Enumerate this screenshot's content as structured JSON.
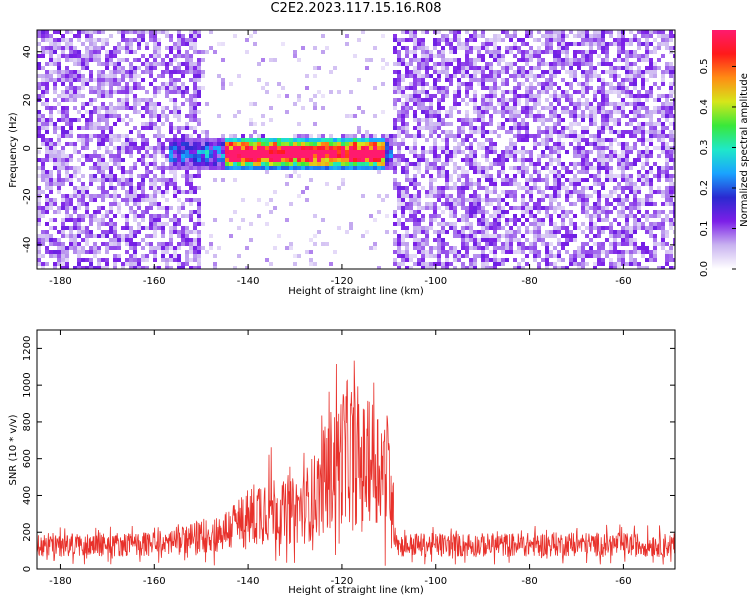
{
  "title": "C2E2.2023.117.15.16.R08",
  "colors": {
    "snr_line": "#e8312b",
    "axes": "#000000",
    "colormap": [
      "#ffffff",
      "#c9b3f0",
      "#7c1fe8",
      "#2a2ad0",
      "#1aa3ff",
      "#1fe8c9",
      "#39e83a",
      "#d6e61a",
      "#ff8c14",
      "#ff1a1a",
      "#ff1a6e"
    ]
  },
  "chart_data": [
    {
      "type": "heatmap",
      "title": "",
      "xlabel": "Height of straight line (km)",
      "ylabel": "Frequency (Hz)",
      "xlim": [
        -185,
        -49
      ],
      "ylim": [
        -50,
        49
      ],
      "xticks": [
        -180,
        -160,
        -140,
        -120,
        -100,
        -80,
        -60
      ],
      "yticks": [
        -40,
        -20,
        0,
        20,
        40
      ],
      "xtick_labels": [
        "-180",
        "-160",
        "-140",
        "-120",
        "-100",
        "-80",
        "-60"
      ],
      "ytick_labels": [
        "-40",
        "-20",
        "0",
        "20",
        "40"
      ],
      "signal_band": {
        "x_range": [
          -157,
          -109
        ],
        "freq_center": -2,
        "peak_x_range": [
          -145,
          -111
        ]
      },
      "quiet_region": {
        "x_range": [
          -150,
          -109
        ],
        "freq_abs_min": 6
      },
      "colorbar": {
        "label": "Normalized spectral amplitude",
        "range": [
          0,
          0.59
        ],
        "ticks": [
          0.0,
          0.1,
          0.2,
          0.3,
          0.4,
          0.5
        ],
        "tick_labels": [
          "0.0",
          "0.1",
          "0.2",
          "0.3",
          "0.4",
          "0.5"
        ]
      }
    },
    {
      "type": "line",
      "title": "",
      "xlabel": "Height of straight line (km)",
      "ylabel": "SNR (10 * v/v)",
      "xlim": [
        -185,
        -49
      ],
      "ylim": [
        0,
        1300
      ],
      "xticks": [
        -180,
        -160,
        -140,
        -120,
        -100,
        -80,
        -60
      ],
      "yticks": [
        0,
        200,
        400,
        600,
        800,
        1000,
        1200
      ],
      "xtick_labels": [
        "-180",
        "-160",
        "-140",
        "-120",
        "-100",
        "-80",
        "-60"
      ],
      "ytick_labels": [
        "0",
        "200",
        "400",
        "600",
        "800",
        "1000",
        "1200"
      ],
      "envelope": {
        "x": [
          -185,
          -160,
          -152,
          -146,
          -140,
          -136,
          -132,
          -128,
          -125,
          -122,
          -119,
          -116,
          -113,
          -110,
          -109,
          -108,
          -90,
          -70,
          -49
        ],
        "mean": [
          130,
          135,
          165,
          195,
          270,
          350,
          300,
          340,
          420,
          560,
          640,
          560,
          600,
          520,
          300,
          130,
          130,
          135,
          130
        ],
        "amp": [
          110,
          110,
          140,
          180,
          280,
          360,
          280,
          340,
          420,
          580,
          640,
          560,
          560,
          560,
          280,
          110,
          110,
          110,
          110
        ]
      }
    }
  ]
}
